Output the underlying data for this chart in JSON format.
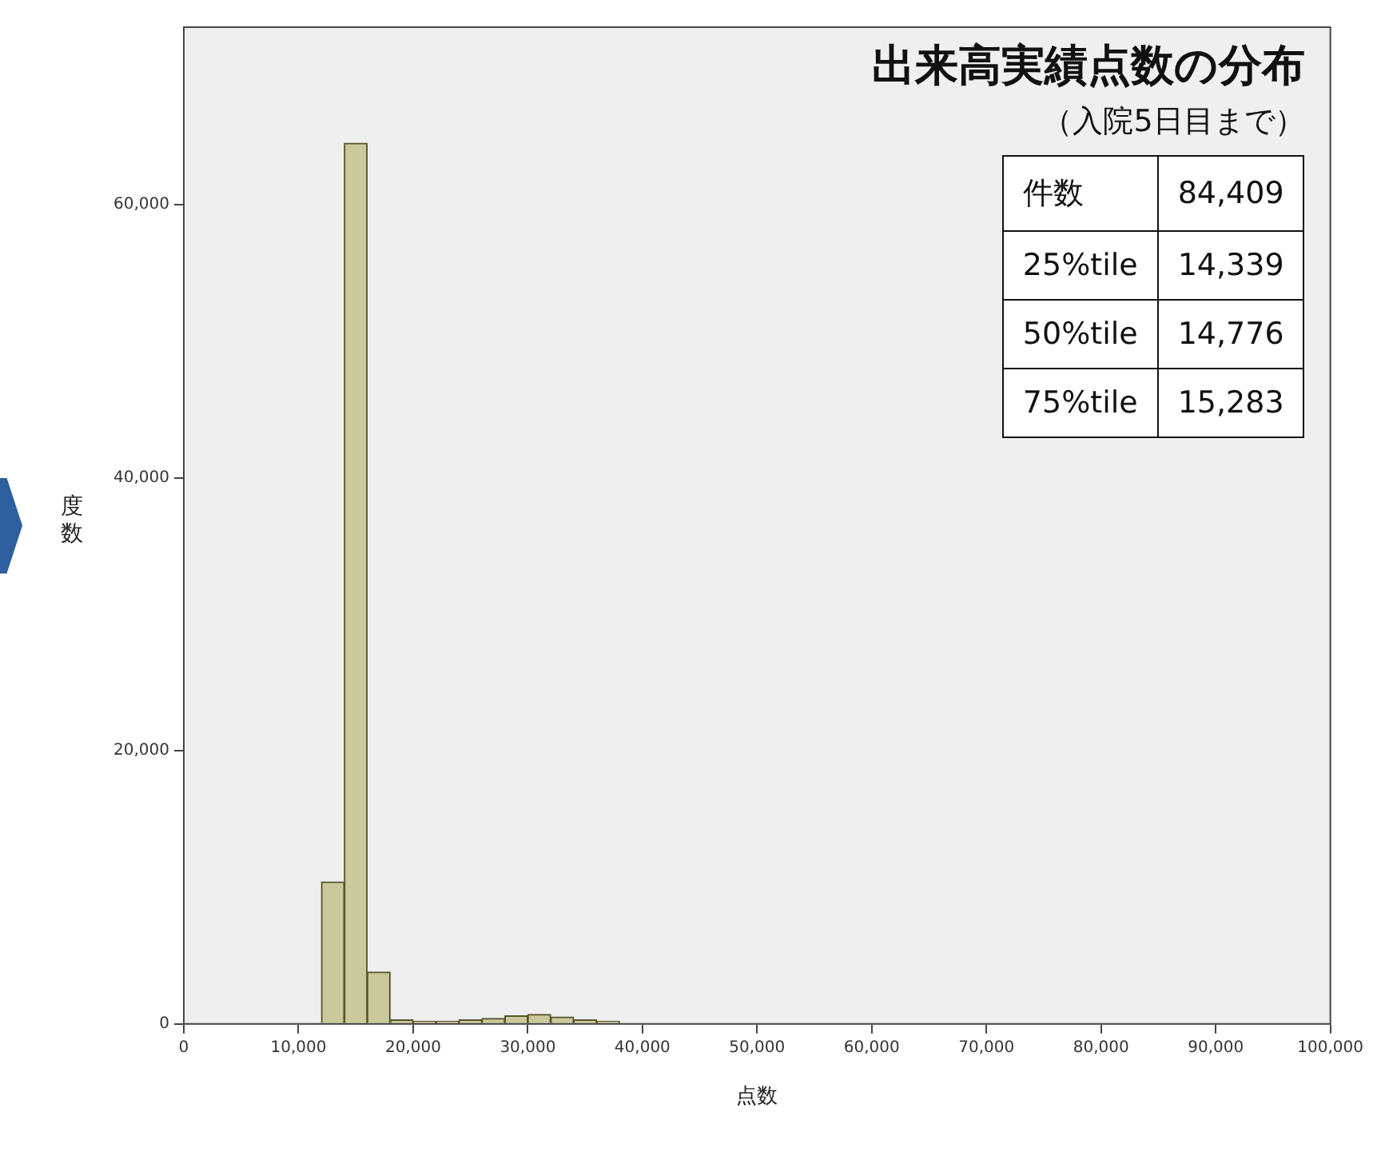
{
  "chart_data": {
    "type": "histogram",
    "title": "出来高実績点数の分布",
    "subtitle": "（入院5日目まで）",
    "xlabel": "点数",
    "ylabel": "度数",
    "bins": [
      12000,
      14000,
      16000,
      18000,
      20000,
      22000,
      24000,
      26000,
      28000,
      30000,
      32000,
      34000,
      36000,
      38000
    ],
    "values": [
      10400,
      64500,
      3800,
      300,
      200,
      200,
      300,
      400,
      600,
      700,
      500,
      300,
      200
    ],
    "color": "#c9c99b",
    "xlim": [
      0,
      100000
    ],
    "xticks": [
      {
        "value": 0,
        "label": "0"
      },
      {
        "value": 10000,
        "label": "10,000"
      },
      {
        "value": 20000,
        "label": "20,000"
      },
      {
        "value": 30000,
        "label": "30,000"
      },
      {
        "value": 40000,
        "label": "40,000"
      },
      {
        "value": 50000,
        "label": "50,000"
      },
      {
        "value": 60000,
        "label": "60,000"
      },
      {
        "value": 70000,
        "label": "70,000"
      },
      {
        "value": 80000,
        "label": "80,000"
      },
      {
        "value": 90000,
        "label": "90,000"
      },
      {
        "value": 100000,
        "label": "100,000"
      }
    ],
    "ylim": [
      0,
      73000
    ],
    "yticks": [
      {
        "value": 0,
        "label": "0"
      },
      {
        "value": 20000,
        "label": "20,000"
      },
      {
        "value": 40000,
        "label": "40,000"
      },
      {
        "value": 60000,
        "label": "60,000"
      }
    ],
    "annotations": [
      "件数",
      "84,409",
      "25%tile",
      "14,339",
      "50%tile",
      "14,776",
      "75%tile",
      "15,283"
    ]
  }
}
